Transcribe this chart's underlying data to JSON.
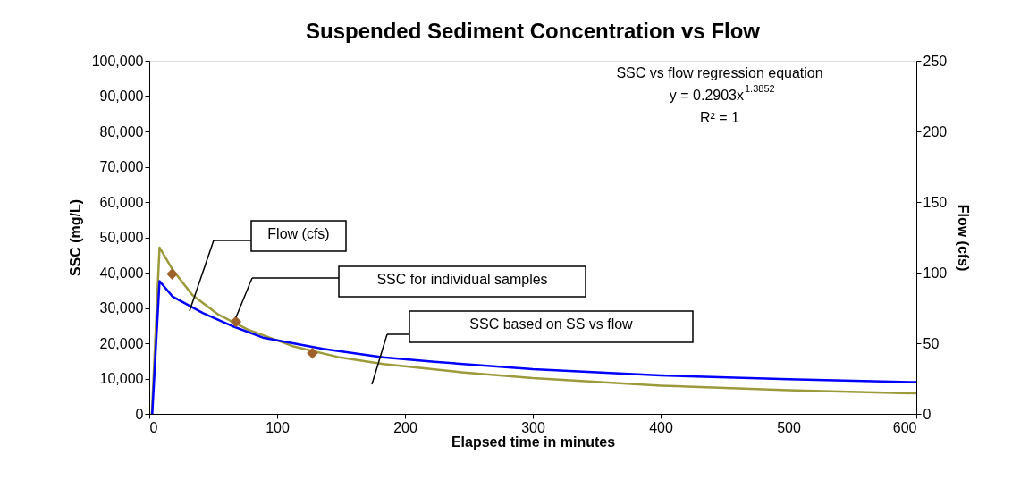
{
  "chart_data": {
    "type": "line",
    "title": "Suspended Sediment Concentration vs Flow",
    "xlabel": "Elapsed time in minutes",
    "ylabel": "SSC (mg/L)",
    "y2label": "Flow (cfs)",
    "xlim": [
      0,
      600
    ],
    "xticks": [
      0,
      100,
      200,
      300,
      400,
      500,
      600
    ],
    "ylim": [
      0,
      100000
    ],
    "yticks": [
      0,
      {
        "value": 10000,
        "label": "10,000"
      },
      {
        "value": 20000,
        "label": "20,000"
      },
      {
        "value": 30000,
        "label": "30,000"
      },
      {
        "value": 40000,
        "label": "40,000"
      },
      {
        "value": 50000,
        "label": "50,000"
      },
      {
        "value": 60000,
        "label": "60,000"
      },
      {
        "value": 70000,
        "label": "70,000"
      },
      {
        "value": 80000,
        "label": "80,000"
      },
      {
        "value": 90000,
        "label": "90,000"
      },
      {
        "value": 100000,
        "label": "100,000"
      }
    ],
    "y2lim": [
      0,
      250
    ],
    "y2ticks": [
      0,
      50,
      100,
      150,
      200,
      250
    ],
    "grid": false,
    "series": [
      {
        "color": "#9c9a3a",
        "x": [
          2,
          8,
          18.3,
          33.6,
          53.6,
          77,
          112,
          147.6,
          183,
          244,
          300,
          400,
          500,
          600
        ],
        "values": [
          0,
          47100,
          40800,
          33700,
          28200,
          23900,
          19200,
          16100,
          14100,
          11800,
          10100,
          8000,
          6700,
          5800
        ]
      },
      {
        "color": "#0000ff",
        "axis": "y2",
        "x": [
          2.3,
          8,
          18.3,
          41.8,
          65.3,
          88.8,
          135.8,
          182.8,
          223,
          300,
          400,
          500,
          600
        ],
        "values": [
          0,
          94,
          83,
          71.5,
          62,
          54,
          46,
          40,
          36.8,
          31.7,
          27.2,
          24.5,
          22.4
        ]
      },
      {
        "type": "scatter",
        "marker": "diamond",
        "color": "#a0622d",
        "x": [
          17.9,
          67.7,
          127.6
        ],
        "values": [
          39600,
          26100,
          17200
        ]
      }
    ],
    "annotations": [
      "SSC vs flow regression equation",
      "y = 0.2903x$^{1.3852}$",
      "R² = 1",
      "Flow (cfs)",
      "SSC for individual samples",
      "SSC based on SS vs flow"
    ]
  }
}
